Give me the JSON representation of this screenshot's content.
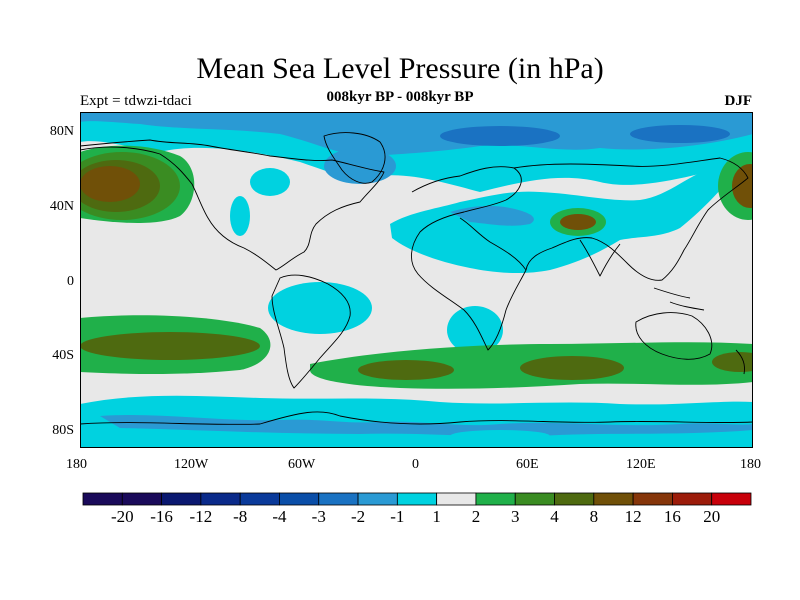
{
  "title": "Mean Sea Level Pressure (in hPa)",
  "subtitle": "008kyr BP - 008kyr BP",
  "left_label": "Expt = tdwzi-tdaci",
  "right_label": "DJF",
  "x_ticks": [
    "180",
    "120W",
    "60W",
    "0",
    "60E",
    "120E",
    "180"
  ],
  "y_ticks": [
    "80N",
    "40N",
    "0",
    "40S",
    "80S"
  ],
  "colorbar": {
    "labels": [
      "-20",
      "-16",
      "-12",
      "-8",
      "-4",
      "-3",
      "-2",
      "-1",
      "1",
      "2",
      "3",
      "4",
      "8",
      "12",
      "16",
      "20"
    ],
    "colors": [
      "#1a0a5a",
      "#0a1870",
      "#0a2a8a",
      "#0a3a9a",
      "#0a4ea8",
      "#1a72c2",
      "#2a9ad4",
      "#00d2e0",
      "#e8e8e8",
      "#20b04a",
      "#3a8c22",
      "#4e6a10",
      "#705008",
      "#86360a",
      "#9c1c0a",
      "#c8000a"
    ]
  },
  "chart_data": {
    "type": "heatmap",
    "variable": "Mean Sea Level Pressure (in hPa)",
    "difference": "008kyr BP - 008kyr BP",
    "experiment": "tdwzi-tdaci",
    "season": "DJF",
    "xlim": [
      -180,
      180
    ],
    "ylim": [
      -90,
      90
    ],
    "contour_levels": [
      -20,
      -16,
      -12,
      -8,
      -4,
      -3,
      -2,
      -1,
      1,
      2,
      3,
      4,
      8,
      12,
      16,
      20
    ]
  }
}
